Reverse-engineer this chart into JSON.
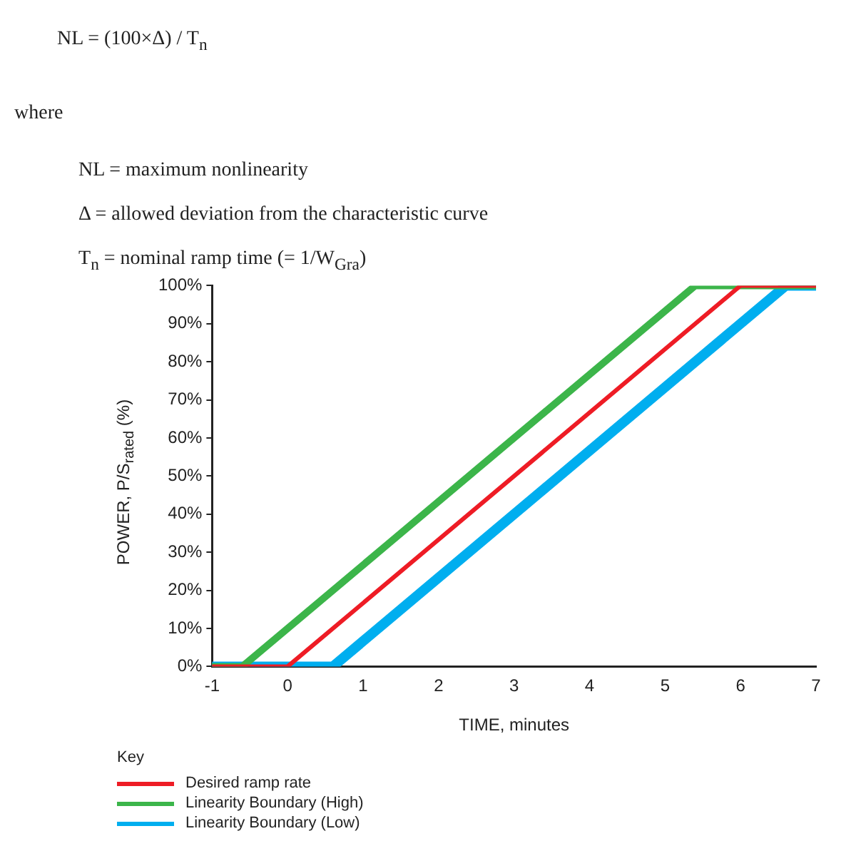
{
  "chart_data": {
    "type": "line",
    "xlabel": "TIME, minutes",
    "ylabel": "POWER, P/S$_{rated}$ (%)",
    "legend_title": "Key",
    "legend": "bottom left",
    "annotations": [
      "NL = (100×Δ) / T$_{n}$",
      "where",
      "NL = maximum nonlinearity",
      "Δ = allowed deviation from the characteristic curve",
      "T$_{n}$ = nominal ramp time (= 1/W$_{Gra}$)"
    ],
    "xlim": [
      -1,
      7
    ],
    "xticks": [
      -1,
      0,
      1,
      2,
      3,
      4,
      5,
      6,
      7
    ],
    "ylim": [
      0,
      100
    ],
    "yticks": [
      {
        "value": 0,
        "label": "0%"
      },
      {
        "value": 10,
        "label": "10%"
      },
      {
        "value": 20,
        "label": "20%"
      },
      {
        "value": 30,
        "label": "30%"
      },
      {
        "value": 40,
        "label": "40%"
      },
      {
        "value": 50,
        "label": "50%"
      },
      {
        "value": 60,
        "label": "60%"
      },
      {
        "value": 70,
        "label": "70%"
      },
      {
        "value": 80,
        "label": "80%"
      },
      {
        "value": 90,
        "label": "90%"
      },
      {
        "value": 100,
        "label": "100%"
      }
    ],
    "grid": false,
    "marker": "none",
    "line_style": "solid",
    "series": [
      {
        "name": "Desired ramp rate",
        "color": "#ee1c25",
        "x": [
          -1,
          0,
          6,
          7
        ],
        "values": [
          0,
          0,
          100,
          100
        ]
      },
      {
        "name": "Linearity Boundary (High)",
        "color": "#3cb54a",
        "x": [
          -1,
          -0.6,
          5.4,
          7
        ],
        "values": [
          0,
          0,
          100,
          100
        ]
      },
      {
        "name": "Linearity Boundary (Low)",
        "color": "#00aeef",
        "x": [
          -1,
          0.6,
          6.6,
          7
        ],
        "values": [
          0,
          0,
          100,
          100
        ]
      }
    ]
  }
}
